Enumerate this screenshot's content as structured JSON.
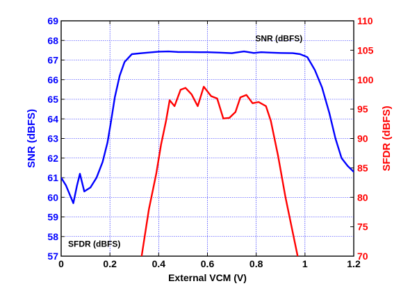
{
  "chart_data": {
    "type": "line",
    "xlabel": "External VCM (V)",
    "ylabel_left": "SNR (dBFS)",
    "ylabel_right": "SFDR (dBFS)",
    "xlim": [
      0,
      1.2
    ],
    "ylim_left": [
      57,
      69
    ],
    "ylim_right": [
      70,
      110
    ],
    "x_ticks": [
      "0",
      "0.2",
      "0.4",
      "0.6",
      "0.8",
      "1",
      "1.2"
    ],
    "y_ticks_left": [
      "57",
      "58",
      "59",
      "60",
      "61",
      "62",
      "63",
      "64",
      "65",
      "66",
      "67",
      "68",
      "69"
    ],
    "y_ticks_right": [
      "70",
      "75",
      "80",
      "85",
      "90",
      "95",
      "100",
      "105",
      "110"
    ],
    "grid": true,
    "annotations": [
      {
        "text": "SNR (dBFS)",
        "x": 0.99,
        "y_left": 68.1
      },
      {
        "text": "SFDR (dBFS)",
        "x": 0.136,
        "y_left": 57.62
      }
    ],
    "series": [
      {
        "axis": "left",
        "color": "#0000ff",
        "points": [
          [
            0.0,
            61.0
          ],
          [
            0.02,
            60.6
          ],
          [
            0.05,
            59.7
          ],
          [
            0.065,
            60.6
          ],
          [
            0.077,
            61.2
          ],
          [
            0.095,
            60.3
          ],
          [
            0.12,
            60.5
          ],
          [
            0.145,
            61.0
          ],
          [
            0.17,
            61.8
          ],
          [
            0.19,
            62.8
          ],
          [
            0.205,
            63.9
          ],
          [
            0.22,
            65.1
          ],
          [
            0.24,
            66.2
          ],
          [
            0.26,
            66.9
          ],
          [
            0.29,
            67.3
          ],
          [
            0.33,
            67.35
          ],
          [
            0.4,
            67.43
          ],
          [
            0.44,
            67.44
          ],
          [
            0.48,
            67.41
          ],
          [
            0.52,
            67.41
          ],
          [
            0.57,
            67.4
          ],
          [
            0.6,
            67.4
          ],
          [
            0.65,
            67.38
          ],
          [
            0.7,
            67.35
          ],
          [
            0.75,
            67.44
          ],
          [
            0.79,
            67.36
          ],
          [
            0.82,
            67.4
          ],
          [
            0.86,
            67.38
          ],
          [
            0.9,
            67.36
          ],
          [
            0.95,
            67.35
          ],
          [
            0.98,
            67.3
          ],
          [
            1.01,
            67.15
          ],
          [
            1.04,
            66.5
          ],
          [
            1.07,
            65.6
          ],
          [
            1.1,
            64.3
          ],
          [
            1.125,
            63.0
          ],
          [
            1.15,
            62.0
          ],
          [
            1.175,
            61.6
          ],
          [
            1.2,
            61.3
          ]
        ]
      },
      {
        "axis": "right",
        "color": "#ff0000",
        "points": [
          [
            0.33,
            70.0
          ],
          [
            0.36,
            78.0
          ],
          [
            0.39,
            84.0
          ],
          [
            0.41,
            89.0
          ],
          [
            0.43,
            93.0
          ],
          [
            0.445,
            96.5
          ],
          [
            0.465,
            95.5
          ],
          [
            0.49,
            98.3
          ],
          [
            0.51,
            98.6
          ],
          [
            0.535,
            97.5
          ],
          [
            0.56,
            95.5
          ],
          [
            0.585,
            98.8
          ],
          [
            0.615,
            97.2
          ],
          [
            0.64,
            96.8
          ],
          [
            0.665,
            93.4
          ],
          [
            0.69,
            93.5
          ],
          [
            0.715,
            94.5
          ],
          [
            0.735,
            97.0
          ],
          [
            0.76,
            97.4
          ],
          [
            0.785,
            96.0
          ],
          [
            0.81,
            96.2
          ],
          [
            0.84,
            95.5
          ],
          [
            0.86,
            93.0
          ],
          [
            0.89,
            87.0
          ],
          [
            0.92,
            80.0
          ],
          [
            0.95,
            74.0
          ],
          [
            0.97,
            70.0
          ]
        ]
      }
    ]
  }
}
